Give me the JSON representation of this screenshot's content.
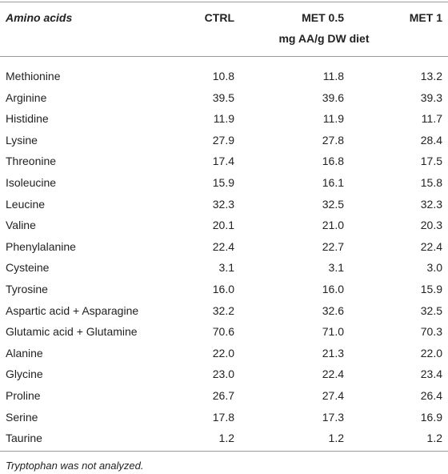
{
  "header": {
    "columns": [
      "Amino acids",
      "CTRL",
      "MET 0.5",
      "MET 1"
    ],
    "unit_label": "mg AA/g DW diet"
  },
  "table": {
    "rows": [
      [
        "Methionine",
        "10.8",
        "11.8",
        "13.2"
      ],
      [
        "Arginine",
        "39.5",
        "39.6",
        "39.3"
      ],
      [
        "Histidine",
        "11.9",
        "11.9",
        "11.7"
      ],
      [
        "Lysine",
        "27.9",
        "27.8",
        "28.4"
      ],
      [
        "Threonine",
        "17.4",
        "16.8",
        "17.5"
      ],
      [
        "Isoleucine",
        "15.9",
        "16.1",
        "15.8"
      ],
      [
        "Leucine",
        "32.3",
        "32.5",
        "32.3"
      ],
      [
        "Valine",
        "20.1",
        "21.0",
        "20.3"
      ],
      [
        "Phenylalanine",
        "22.4",
        "22.7",
        "22.4"
      ],
      [
        "Cysteine",
        "3.1",
        "3.1",
        "3.0"
      ],
      [
        "Tyrosine",
        "16.0",
        "16.0",
        "15.9"
      ],
      [
        "Aspartic acid + Asparagine",
        "32.2",
        "32.6",
        "32.5"
      ],
      [
        "Glutamic acid + Glutamine",
        "70.6",
        "71.0",
        "70.3"
      ],
      [
        "Alanine",
        "22.0",
        "21.3",
        "22.0"
      ],
      [
        "Glycine",
        "23.0",
        "22.4",
        "23.4"
      ],
      [
        "Proline",
        "26.7",
        "27.4",
        "26.4"
      ],
      [
        "Serine",
        "17.8",
        "17.3",
        "16.9"
      ],
      [
        "Taurine",
        "1.2",
        "1.2",
        "1.2"
      ]
    ]
  },
  "footnote": "Tryptophan was not analyzed."
}
